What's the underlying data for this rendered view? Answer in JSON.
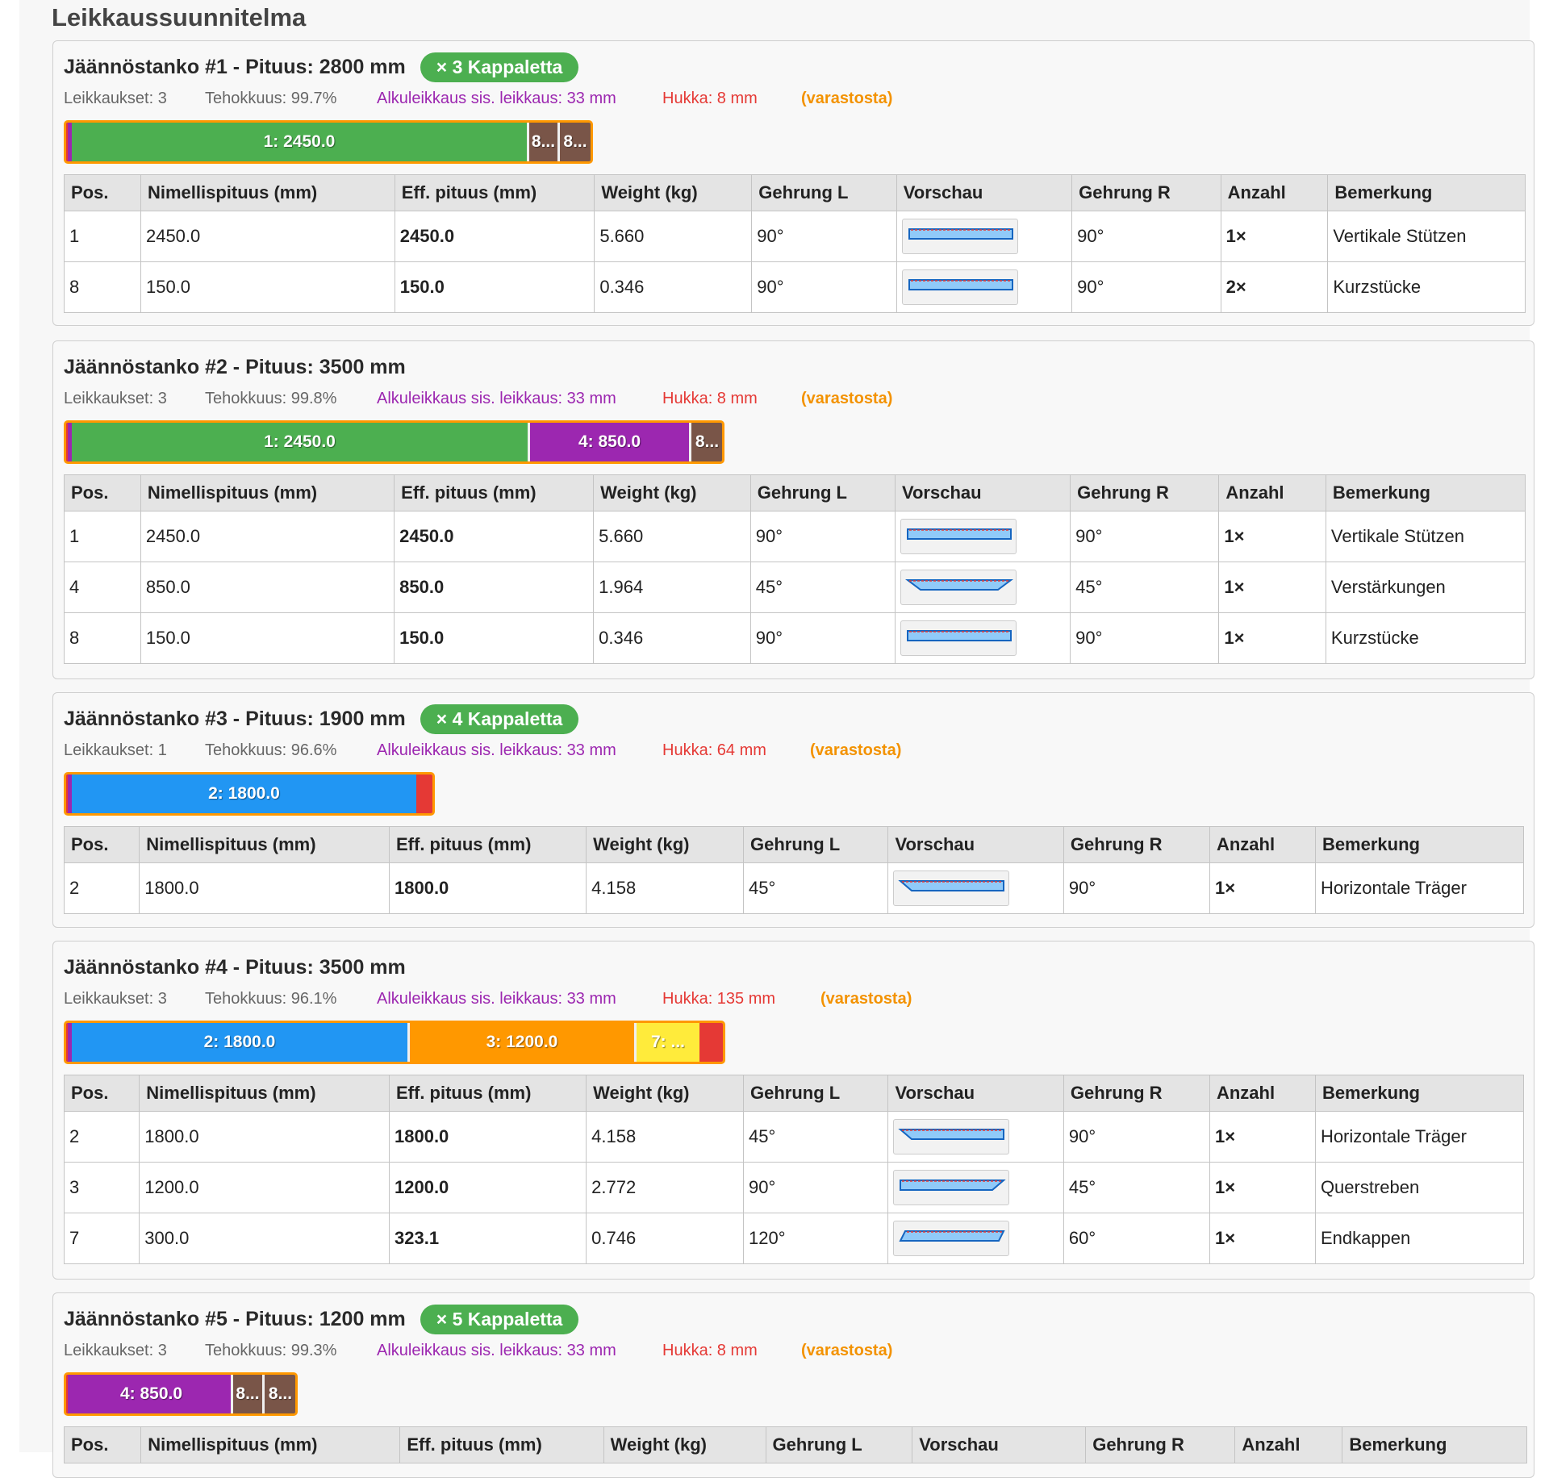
{
  "page_title": "Leikkaussuunnitelma",
  "table_headers": [
    "Pos.",
    "Nimellispituus (mm)",
    "Eff. pituus (mm)",
    "Weight (kg)",
    "Gehrung L",
    "Vorschau",
    "Gehrung R",
    "Anzahl",
    "Bemerkung"
  ],
  "colors": {
    "pos_1": "#4caf50",
    "pos_2": "#2196f3",
    "pos_3": "#ff9800",
    "pos_4": "#9c27b0",
    "pos_7": "#ffeb3b",
    "pos_8": "#795548",
    "waste": "#e53935",
    "trim": "#9c27b0",
    "bar_border": "#ff9800",
    "badge": "#4caf50",
    "accent_blue": "#1e88e5"
  },
  "bars": [
    {
      "title": "Jäännöstanko #1 - Pituus: 2800 mm",
      "badge": "× 3 Kappaletta",
      "stats": {
        "cuts": "Leikkaukset: 3",
        "efficiency": "Tehokkuus: 99.7%",
        "trim": "Alkuleikkaus sis. leikkaus: 33 mm",
        "waste": "Hukka: 8 mm",
        "stock": "(varastosta)"
      },
      "length_mm": 2800,
      "segments": [
        {
          "label": "1: 2450.0",
          "length_mm": 2450,
          "color": "#4caf50"
        },
        {
          "label": "8...",
          "length_mm": 150,
          "color": "#795548"
        },
        {
          "label": "8...",
          "length_mm": 150,
          "color": "#795548"
        }
      ],
      "rows": [
        {
          "pos": "1",
          "nominal": "2450.0",
          "effective": "2450.0",
          "weight": "5.660",
          "miter_l": "90°",
          "miter_r": "90°",
          "count": "1×",
          "note": "Vertikale Stützen"
        },
        {
          "pos": "8",
          "nominal": "150.0",
          "effective": "150.0",
          "weight": "0.346",
          "miter_l": "90°",
          "miter_r": "90°",
          "count": "2×",
          "note": "Kurzstücke"
        }
      ]
    },
    {
      "title": "Jäännöstanko #2 - Pituus: 3500 mm",
      "badge": "",
      "stats": {
        "cuts": "Leikkaukset: 3",
        "efficiency": "Tehokkuus: 99.8%",
        "trim": "Alkuleikkaus sis. leikkaus: 33 mm",
        "waste": "Hukka: 8 mm",
        "stock": "(varastosta)"
      },
      "length_mm": 3500,
      "segments": [
        {
          "label": "1: 2450.0",
          "length_mm": 2450,
          "color": "#4caf50"
        },
        {
          "label": "4: 850.0",
          "length_mm": 850,
          "color": "#9c27b0"
        },
        {
          "label": "8...",
          "length_mm": 150,
          "color": "#795548"
        }
      ],
      "rows": [
        {
          "pos": "1",
          "nominal": "2450.0",
          "effective": "2450.0",
          "weight": "5.660",
          "miter_l": "90°",
          "miter_r": "90°",
          "count": "1×",
          "note": "Vertikale Stützen"
        },
        {
          "pos": "4",
          "nominal": "850.0",
          "effective": "850.0",
          "weight": "1.964",
          "miter_l": "45°",
          "miter_r": "45°",
          "count": "1×",
          "note": "Verstärkungen"
        },
        {
          "pos": "8",
          "nominal": "150.0",
          "effective": "150.0",
          "weight": "0.346",
          "miter_l": "90°",
          "miter_r": "90°",
          "count": "1×",
          "note": "Kurzstücke"
        }
      ]
    },
    {
      "title": "Jäännöstanko #3 - Pituus: 1900 mm",
      "badge": "× 4 Kappaletta",
      "stats": {
        "cuts": "Leikkaukset: 1",
        "efficiency": "Tehokkuus: 96.6%",
        "trim": "Alkuleikkaus sis. leikkaus: 33 mm",
        "waste": "Hukka: 64 mm",
        "stock": "(varastosta)"
      },
      "length_mm": 1900,
      "segments": [
        {
          "label": "2: 1800.0",
          "length_mm": 1800,
          "color": "#2196f3"
        }
      ],
      "rows": [
        {
          "pos": "2",
          "nominal": "1800.0",
          "effective": "1800.0",
          "weight": "4.158",
          "miter_l": "45°",
          "miter_r": "90°",
          "count": "1×",
          "note": "Horizontale Träger"
        }
      ]
    },
    {
      "title": "Jäännöstanko #4 - Pituus: 3500 mm",
      "badge": "",
      "stats": {
        "cuts": "Leikkaukset: 3",
        "efficiency": "Tehokkuus: 96.1%",
        "trim": "Alkuleikkaus sis. leikkaus: 33 mm",
        "waste": "Hukka: 135 mm",
        "stock": "(varastosta)"
      },
      "length_mm": 3500,
      "segments": [
        {
          "label": "2: 1800.0",
          "length_mm": 1800,
          "color": "#2196f3"
        },
        {
          "label": "3: 1200.0",
          "length_mm": 1200,
          "color": "#ff9800"
        },
        {
          "label": "7: ...",
          "length_mm": 323.1,
          "color": "#ffeb3b"
        }
      ],
      "rows": [
        {
          "pos": "2",
          "nominal": "1800.0",
          "effective": "1800.0",
          "weight": "4.158",
          "miter_l": "45°",
          "miter_r": "90°",
          "count": "1×",
          "note": "Horizontale Träger"
        },
        {
          "pos": "3",
          "nominal": "1200.0",
          "effective": "1200.0",
          "weight": "2.772",
          "miter_l": "90°",
          "miter_r": "45°",
          "count": "1×",
          "note": "Querstreben"
        },
        {
          "pos": "7",
          "nominal": "300.0",
          "effective": "323.1",
          "weight": "0.746",
          "miter_l": "120°",
          "miter_r": "60°",
          "count": "1×",
          "note": "Endkappen"
        }
      ]
    },
    {
      "title": "Jäännöstanko #5 - Pituus: 1200 mm",
      "badge": "× 5 Kappaletta",
      "stats": {
        "cuts": "Leikkaukset: 3",
        "efficiency": "Tehokkuus: 99.3%",
        "trim": "Alkuleikkaus sis. leikkaus: 33 mm",
        "waste": "Hukka: 8 mm",
        "stock": "(varastosta)"
      },
      "length_mm": 1200,
      "segments": [
        {
          "label": "4: 850.0",
          "length_mm": 850,
          "color": "#9c27b0"
        },
        {
          "label": "8...",
          "length_mm": 150,
          "color": "#795548"
        },
        {
          "label": "8...",
          "length_mm": 150,
          "color": "#795548"
        }
      ],
      "rows": []
    }
  ]
}
